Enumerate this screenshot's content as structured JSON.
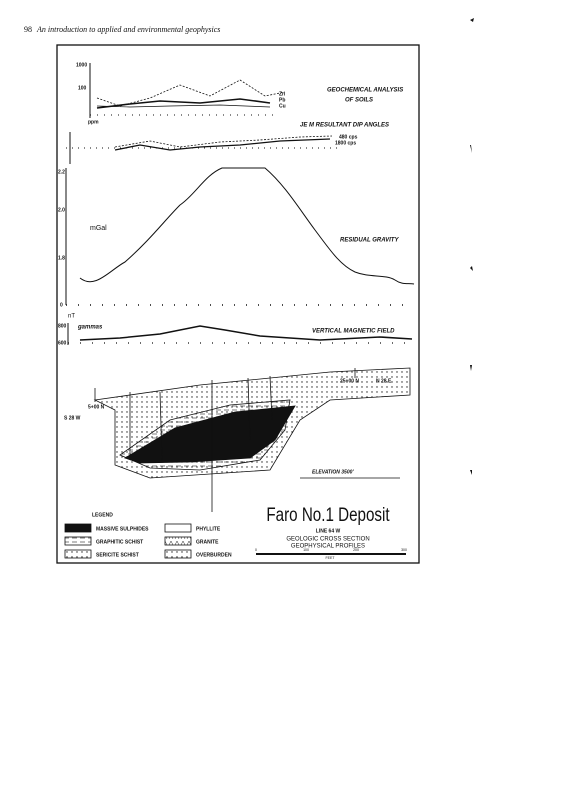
{
  "header": {
    "page_number": "98",
    "running_title": "An introduction to applied and environmental geophysics"
  },
  "figure": {
    "geochem": {
      "label_lines": [
        "GEOCHEMICAL ANALYSIS",
        "OF SOILS"
      ],
      "ticks": [
        "1000",
        "100"
      ],
      "unit": "ppm",
      "elements": [
        "Zn",
        "Pb",
        "Cu"
      ]
    },
    "em": {
      "label": "JE M RESULTANT DIP ANGLES",
      "frequencies": [
        "480 cps",
        "1800 cps"
      ]
    },
    "gravity": {
      "label": "RESIDUAL GRAVITY",
      "unit": "mGal",
      "ticks": [
        "2.2",
        "2.0",
        "1.8",
        "0"
      ]
    },
    "magnetic": {
      "label": "VERTICAL MAGNETIC FIELD",
      "unit": "nT",
      "old_unit": "gammas",
      "ticks": [
        "800",
        "600"
      ]
    },
    "section": {
      "elevation": "ELEVATION 3500'",
      "station_left": "5+00 N",
      "bearing_left": "S 28 W",
      "station_right": "25+00 N",
      "bearing_right": "N 28 E"
    },
    "legend": {
      "title": "LEGEND",
      "items": [
        "MASSIVE SULPHIDES",
        "GRAPHITIC SCHIST",
        "SERICITE SCHIST",
        "PHYLLITE",
        "GRANITE",
        "OVERBURDEN"
      ]
    },
    "title": "Faro No.1 Deposit",
    "subtitle_lines": [
      "LINE 64 W",
      "GEOLOGIC CROSS SECTION",
      "GEOPHYSICAL PROFILES"
    ],
    "scale": {
      "ticks": [
        "0",
        "100",
        "200",
        "300"
      ],
      "unit": "FEET"
    }
  }
}
